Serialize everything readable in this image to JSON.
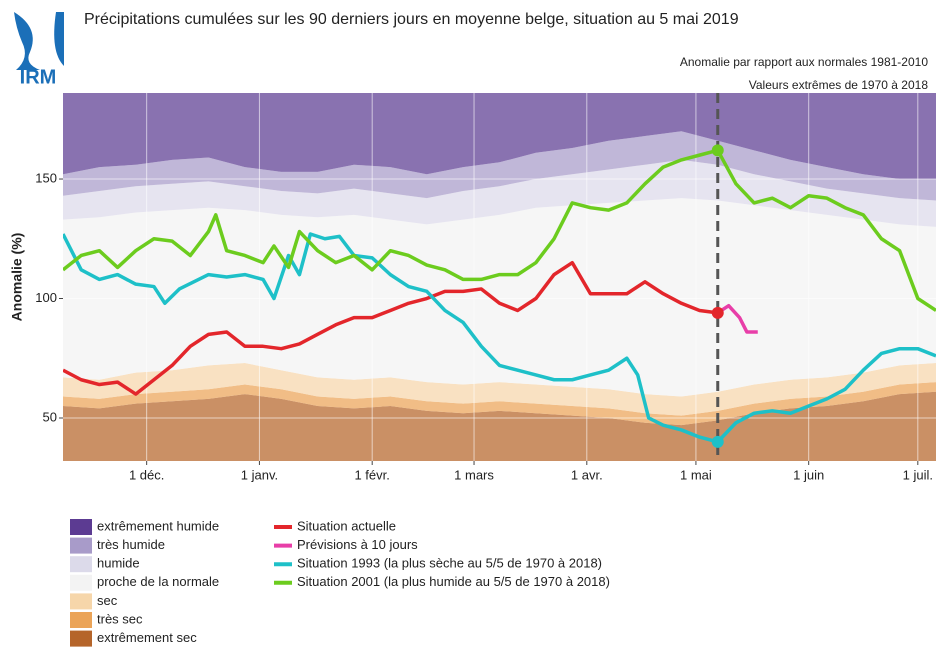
{
  "chart_data": {
    "type": "line",
    "logo": "IRM",
    "title": "Précipitations cumulées sur les 90 derniers jours en moyenne belge, situation au 5 mai 2019",
    "subtitles": [
      "Anomalie par rapport aux normales 1981-2010",
      "Valeurs extrêmes de 1970 à 2018"
    ],
    "ylabel": "Anomalie (%)",
    "xlim": [
      0,
      240
    ],
    "xticks": [
      {
        "value": 23,
        "label": "1 déc."
      },
      {
        "value": 54,
        "label": "1 janv."
      },
      {
        "value": 85,
        "label": "1 févr."
      },
      {
        "value": 113,
        "label": "1 mars"
      },
      {
        "value": 144,
        "label": "1 avr."
      },
      {
        "value": 174,
        "label": "1 mai"
      },
      {
        "value": 205,
        "label": "1 juin"
      },
      {
        "value": 235,
        "label": "1 juil."
      }
    ],
    "ylim": [
      32,
      186
    ],
    "yticks": [
      50,
      100,
      150
    ],
    "grid": true,
    "vline": 180,
    "band_x": [
      0,
      10,
      20,
      30,
      40,
      50,
      60,
      70,
      80,
      90,
      100,
      110,
      120,
      130,
      140,
      150,
      160,
      170,
      180,
      190,
      200,
      210,
      220,
      230,
      240
    ],
    "bands": [
      {
        "name": "extrêmement sec",
        "color": "#b5652a",
        "values": [
          55,
          54,
          56,
          57,
          58,
          60,
          58,
          55,
          54,
          55,
          53,
          52,
          53,
          52,
          51,
          50,
          48,
          47,
          49,
          52,
          54,
          55,
          57,
          60,
          61
        ]
      },
      {
        "name": "très sec",
        "color": "#eba458",
        "values": [
          59,
          58,
          60,
          61,
          62,
          64,
          62,
          59,
          58,
          59,
          57,
          56,
          57,
          56,
          55,
          54,
          52,
          51,
          53,
          56,
          58,
          59,
          61,
          64,
          65
        ]
      },
      {
        "name": "sec",
        "color": "#f6d6aa",
        "values": [
          67,
          66,
          69,
          70,
          72,
          73,
          70,
          67,
          66,
          67,
          65,
          64,
          65,
          64,
          63,
          62,
          60,
          59,
          61,
          64,
          66,
          67,
          69,
          72,
          73
        ]
      },
      {
        "name": "proche de la normale",
        "color": "#f3f3f3",
        "values": [
          133,
          134,
          136,
          137,
          138,
          137,
          135,
          134,
          135,
          133,
          131,
          133,
          135,
          138,
          139,
          140,
          141,
          142,
          141,
          139,
          137,
          135,
          133,
          131,
          130
        ]
      },
      {
        "name": "humide",
        "color": "#dcdaea",
        "values": [
          143,
          145,
          147,
          148,
          149,
          147,
          145,
          144,
          146,
          144,
          142,
          145,
          147,
          150,
          152,
          154,
          156,
          158,
          156,
          152,
          149,
          146,
          144,
          142,
          141
        ]
      },
      {
        "name": "très humide",
        "color": "#a89bc9",
        "values": [
          152,
          155,
          156,
          158,
          159,
          155,
          153,
          153,
          156,
          155,
          152,
          155,
          157,
          161,
          163,
          166,
          168,
          170,
          166,
          162,
          158,
          155,
          152,
          150,
          150
        ]
      },
      {
        "name": "extrêmement humide",
        "color": "#5c3b92"
      }
    ],
    "series": [
      {
        "name": "Situation actuelle",
        "color": "#e3262b",
        "x": [
          0,
          5,
          10,
          15,
          20,
          25,
          30,
          35,
          40,
          45,
          50,
          55,
          60,
          65,
          70,
          75,
          80,
          85,
          90,
          95,
          100,
          105,
          110,
          115,
          120,
          125,
          130,
          135,
          140,
          145,
          150,
          155,
          160,
          165,
          170,
          175,
          180
        ],
        "values": [
          70,
          66,
          64,
          65,
          60,
          66,
          72,
          80,
          85,
          86,
          80,
          80,
          79,
          81,
          85,
          89,
          92,
          92,
          95,
          98,
          100,
          103,
          103,
          104,
          98,
          95,
          100,
          110,
          115,
          102,
          102,
          102,
          107,
          102,
          98,
          95,
          94
        ]
      },
      {
        "name": "Prévisions à 10 jours",
        "color": "#e83ea8",
        "x": [
          180,
          183,
          186,
          188,
          191
        ],
        "values": [
          94,
          97,
          92,
          86,
          86
        ]
      },
      {
        "name": "Situation 1993 (la plus sèche au 5/5 de 1970 à 2018)",
        "color": "#1ec0c8",
        "x": [
          0,
          5,
          10,
          15,
          20,
          25,
          28,
          32,
          40,
          45,
          50,
          55,
          58,
          62,
          65,
          68,
          72,
          76,
          80,
          85,
          90,
          95,
          100,
          105,
          110,
          115,
          120,
          125,
          130,
          135,
          140,
          145,
          150,
          155,
          158,
          161,
          165,
          170,
          175,
          180,
          185,
          190,
          195,
          200,
          205,
          210,
          215,
          220,
          225,
          230,
          235,
          240
        ],
        "values": [
          127,
          112,
          108,
          110,
          106,
          105,
          98,
          104,
          110,
          109,
          110,
          108,
          100,
          118,
          110,
          127,
          125,
          126,
          118,
          117,
          110,
          105,
          103,
          95,
          90,
          80,
          72,
          70,
          68,
          66,
          66,
          68,
          70,
          75,
          68,
          50,
          47,
          45,
          42,
          40,
          48,
          52,
          53,
          52,
          55,
          58,
          62,
          70,
          77,
          79,
          79,
          76
        ]
      },
      {
        "name": "Situation 2001 (la plus humide au 5/5 de 1970 à 2018)",
        "color": "#6ccc1e",
        "x": [
          0,
          5,
          10,
          15,
          20,
          25,
          30,
          35,
          40,
          42,
          45,
          50,
          55,
          58,
          62,
          65,
          70,
          75,
          80,
          85,
          90,
          95,
          100,
          105,
          110,
          115,
          120,
          125,
          130,
          135,
          140,
          145,
          150,
          155,
          160,
          165,
          170,
          175,
          180,
          185,
          190,
          195,
          200,
          205,
          210,
          215,
          220,
          225,
          230,
          235,
          240
        ],
        "values": [
          112,
          118,
          120,
          113,
          120,
          125,
          124,
          118,
          128,
          135,
          120,
          118,
          115,
          122,
          113,
          128,
          120,
          115,
          118,
          112,
          120,
          118,
          114,
          112,
          108,
          108,
          110,
          110,
          115,
          125,
          140,
          138,
          137,
          140,
          148,
          155,
          158,
          160,
          162,
          148,
          140,
          142,
          138,
          143,
          142,
          138,
          135,
          125,
          120,
          100,
          95
        ]
      }
    ]
  }
}
